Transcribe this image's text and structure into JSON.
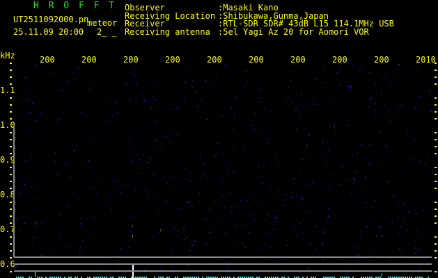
{
  "header": {
    "title": "H R O F F T",
    "filename": "UT2511092000.pn",
    "mode": "meteor",
    "datetime": "25.11.09 20:00",
    "extra": "2_ _",
    "fields": [
      {
        "label": "Observer",
        "value": ":Masaki Kano"
      },
      {
        "label": "Receiving Location",
        "value": ":Shibukawa,Gunma,Japan"
      },
      {
        "label": "Receiver",
        "value": ":RTL-SDR SDR# 43dB L15 114.1MHz USB"
      },
      {
        "label": "Receiving antenna",
        "value": ":5el Yagi Az 20 for Aomori VOR"
      }
    ]
  },
  "axes": {
    "y_unit": "kHz",
    "y_labels": [
      "1.1",
      "1.0",
      "0.9",
      "0.8",
      "0.7",
      "0.6"
    ],
    "x_labels": [
      "2001",
      "2002",
      "2003",
      "2004",
      "2005",
      "2006",
      "2007",
      "2008",
      "2009",
      "2010"
    ]
  },
  "colors": {
    "text": "#ffff00",
    "title": "#22dd22",
    "grid": "#888888",
    "noise": "#10106a",
    "trace": "#00ffff"
  }
}
